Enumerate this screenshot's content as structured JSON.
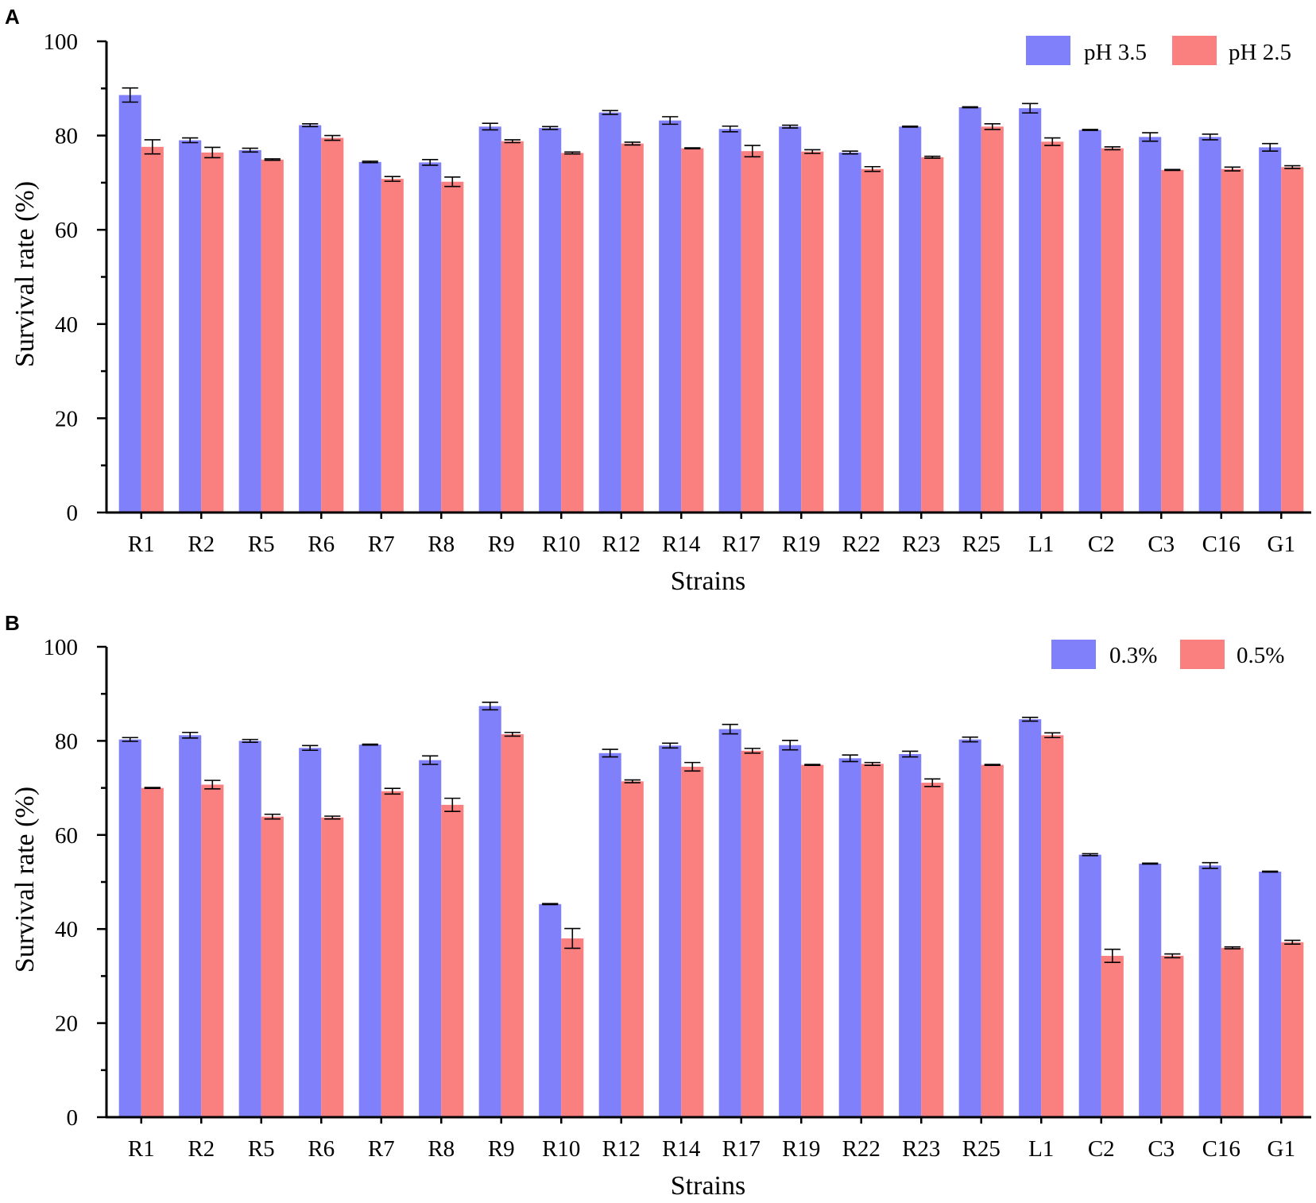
{
  "chart_data": [
    {
      "panel": "A",
      "type": "bar",
      "xlabel": "Strains",
      "ylabel": "Survival rate (%)",
      "ylim": [
        0,
        100
      ],
      "yticks": [
        0,
        20,
        40,
        60,
        80,
        100
      ],
      "legend_position": "top-right",
      "categories": [
        "R1",
        "R2",
        "R5",
        "R6",
        "R7",
        "R8",
        "R9",
        "R10",
        "R12",
        "R14",
        "R17",
        "R19",
        "R22",
        "R23",
        "R25",
        "L1",
        "C2",
        "C3",
        "C16",
        "G1"
      ],
      "series": [
        {
          "name": "pH 3.5",
          "color": "#8080fa",
          "values": [
            88.6,
            79.0,
            76.9,
            82.2,
            74.4,
            74.3,
            81.9,
            81.6,
            84.9,
            83.2,
            81.4,
            81.9,
            76.4,
            81.9,
            86.0,
            85.8,
            81.2,
            79.7,
            79.7,
            77.5
          ],
          "errors": [
            1.5,
            0.5,
            0.4,
            0.3,
            0.15,
            0.6,
            0.7,
            0.3,
            0.4,
            0.8,
            0.6,
            0.3,
            0.3,
            0.1,
            0.1,
            1.0,
            0.1,
            0.9,
            0.6,
            0.8
          ]
        },
        {
          "name": "pH 2.5",
          "color": "#fa7f7f",
          "values": [
            77.6,
            76.4,
            74.9,
            79.5,
            70.8,
            70.2,
            78.8,
            76.3,
            78.3,
            77.3,
            76.7,
            76.6,
            72.9,
            75.4,
            81.9,
            78.7,
            77.3,
            72.7,
            72.9,
            73.3
          ],
          "errors": [
            1.5,
            1.1,
            0.15,
            0.5,
            0.5,
            1.0,
            0.3,
            0.2,
            0.3,
            0.1,
            1.2,
            0.4,
            0.5,
            0.2,
            0.6,
            0.8,
            0.3,
            0.1,
            0.4,
            0.3
          ]
        }
      ]
    },
    {
      "panel": "B",
      "type": "bar",
      "xlabel": "Strains",
      "ylabel": "Survival rate (%)",
      "ylim": [
        0,
        100
      ],
      "yticks": [
        0,
        20,
        40,
        60,
        80,
        100
      ],
      "legend_position": "top-right",
      "categories": [
        "R1",
        "R2",
        "R5",
        "R6",
        "R7",
        "R8",
        "R9",
        "R10",
        "R12",
        "R14",
        "R17",
        "R19",
        "R22",
        "R23",
        "R25",
        "L1",
        "C2",
        "C3",
        "C16",
        "G1"
      ],
      "series": [
        {
          "name": "0.3%",
          "color": "#8080fa",
          "values": [
            80.3,
            81.2,
            80.0,
            78.5,
            79.2,
            75.9,
            87.4,
            45.3,
            77.4,
            79.0,
            82.5,
            79.1,
            76.3,
            77.2,
            80.3,
            84.6,
            55.8,
            53.9,
            53.5,
            52.2
          ],
          "errors": [
            0.4,
            0.6,
            0.3,
            0.5,
            0.1,
            0.9,
            0.8,
            0.1,
            0.8,
            0.5,
            1.0,
            1.0,
            0.7,
            0.6,
            0.5,
            0.4,
            0.2,
            0.1,
            0.6,
            0.1
          ]
        },
        {
          "name": "0.5%",
          "color": "#fa7f7f",
          "values": [
            70.0,
            70.7,
            63.9,
            63.7,
            69.3,
            66.4,
            81.4,
            38.0,
            71.4,
            74.5,
            77.9,
            74.9,
            75.1,
            71.1,
            74.9,
            81.2,
            34.3,
            34.3,
            36.0,
            37.2
          ],
          "errors": [
            0.1,
            0.9,
            0.5,
            0.3,
            0.6,
            1.4,
            0.4,
            2.1,
            0.3,
            0.9,
            0.5,
            0.1,
            0.3,
            0.8,
            0.1,
            0.5,
            1.4,
            0.4,
            0.2,
            0.4
          ]
        }
      ]
    }
  ]
}
